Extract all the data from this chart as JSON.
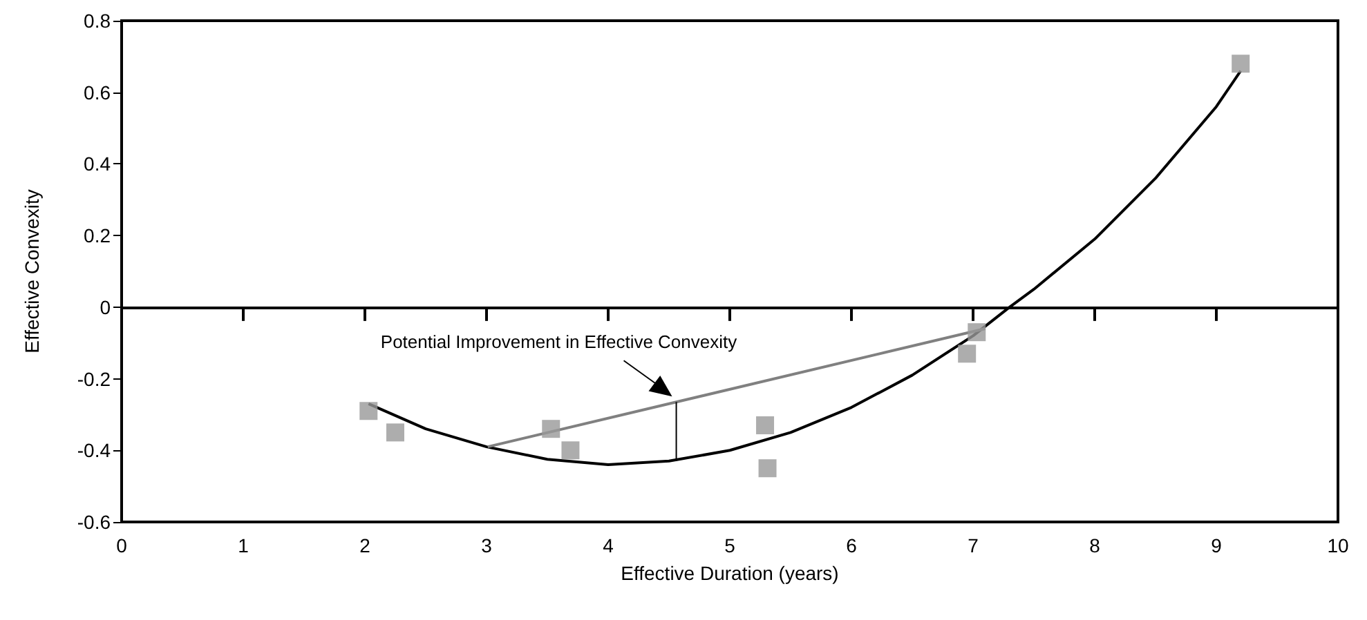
{
  "chart_data": {
    "type": "scatter",
    "xlabel": "Effective Duration (years)",
    "ylabel": "Effective Convexity",
    "annotations": [
      "Potential Improvement in Effective Convexity"
    ],
    "xlim": [
      0,
      10
    ],
    "xticks": [
      0,
      1,
      2,
      3,
      4,
      5,
      6,
      7,
      8,
      9,
      10
    ],
    "ylim": [
      -0.6,
      0.8
    ],
    "yticks": [
      -0.6,
      -0.4,
      -0.2,
      0,
      0.2,
      0.4,
      0.6,
      0.8
    ],
    "grid": false,
    "marker": "square",
    "ref_lines": [
      {
        "axis": "y",
        "value": 0,
        "color": "#000000"
      }
    ],
    "series": [
      {
        "color": "#999999",
        "x": [
          2.03,
          2.25,
          3.53,
          3.69,
          5.29,
          5.31,
          6.95,
          7.03,
          9.2
        ],
        "values": [
          -0.29,
          -0.35,
          -0.34,
          -0.4,
          -0.33,
          -0.45,
          -0.13,
          -0.07,
          0.68
        ]
      },
      {
        "type": "line",
        "color": "#000000",
        "marker": "none",
        "x": [
          2.03,
          2.5,
          3,
          3.5,
          4,
          4.5,
          5,
          5.5,
          6,
          6.5,
          7,
          7.3,
          7.5,
          8,
          8.5,
          9,
          9.2
        ],
        "values": [
          -0.27,
          -0.34,
          -0.39,
          -0.425,
          -0.44,
          -0.43,
          -0.4,
          -0.35,
          -0.28,
          -0.19,
          -0.08,
          0,
          0.05,
          0.19,
          0.36,
          0.56,
          0.66
        ]
      },
      {
        "type": "line",
        "color": "#808080",
        "marker": "none",
        "x": [
          3.01,
          7.1
        ],
        "values": [
          -0.39,
          -0.06
        ]
      },
      {
        "type": "line",
        "color": "#000000",
        "marker": "none",
        "x": [
          4.56,
          4.56
        ],
        "values": [
          -0.265,
          -0.43
        ]
      }
    ]
  }
}
